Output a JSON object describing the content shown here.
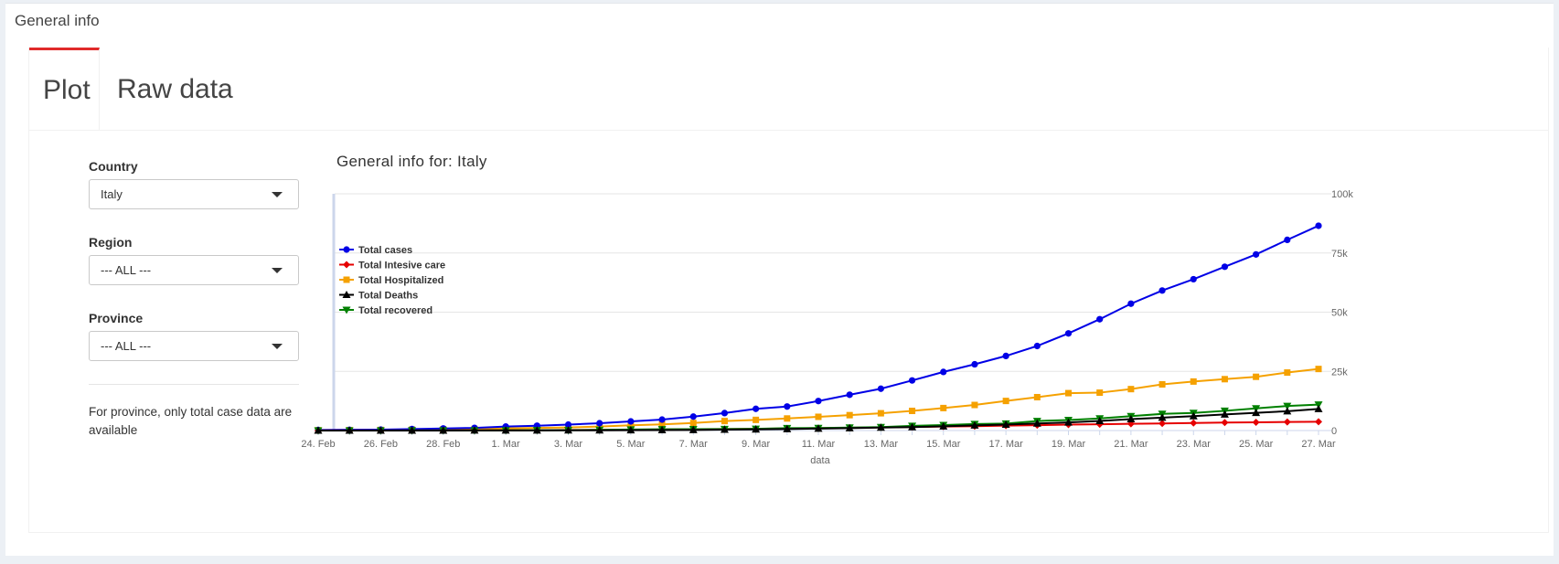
{
  "box": {
    "title": "General info"
  },
  "tabs": [
    {
      "label": "Plot",
      "active": true
    },
    {
      "label": "Raw data",
      "active": false
    }
  ],
  "controls": {
    "country": {
      "label": "Country",
      "value": "Italy"
    },
    "region": {
      "label": "Region",
      "value": "--- ALL ---"
    },
    "province": {
      "label": "Province",
      "value": "--- ALL ---"
    },
    "note": "For province, only total case data are available"
  },
  "chart_data": {
    "type": "line",
    "title": "General info for: Italy",
    "xlabel": "data",
    "ylabel": "",
    "ylim": [
      0,
      100000
    ],
    "yticks": [
      {
        "value": 0,
        "label": "0"
      },
      {
        "value": 25000,
        "label": "25k"
      },
      {
        "value": 50000,
        "label": "50k"
      },
      {
        "value": 75000,
        "label": "75k"
      },
      {
        "value": 100000,
        "label": "100k"
      }
    ],
    "x": [
      "24. Feb",
      "25. Feb",
      "26. Feb",
      "27. Feb",
      "28. Feb",
      "29. Feb",
      "1. Mar",
      "2. Mar",
      "3. Mar",
      "4. Mar",
      "5. Mar",
      "6. Mar",
      "7. Mar",
      "8. Mar",
      "9. Mar",
      "10. Mar",
      "11. Mar",
      "12. Mar",
      "13. Mar",
      "14. Mar",
      "15. Mar",
      "16. Mar",
      "17. Mar",
      "18. Mar",
      "19. Mar",
      "20. Mar",
      "21. Mar",
      "22. Mar",
      "23. Mar",
      "24. Mar",
      "25. Mar",
      "26. Mar",
      "27. Mar"
    ],
    "xtick_labels": [
      "24. Feb",
      "26. Feb",
      "28. Feb",
      "1. Mar",
      "3. Mar",
      "5. Mar",
      "7. Mar",
      "9. Mar",
      "11. Mar",
      "13. Mar",
      "15. Mar",
      "17. Mar",
      "19. Mar",
      "21. Mar",
      "23. Mar",
      "25. Mar",
      "27. Mar"
    ],
    "legend": "left",
    "grid": true,
    "series": [
      {
        "name": "Total cases",
        "color": "#0000e6",
        "marker": "circle",
        "values": [
          229,
          322,
          400,
          650,
          888,
          1128,
          1694,
          2036,
          2502,
          3089,
          3858,
          4636,
          5883,
          7375,
          9172,
          10149,
          12462,
          15113,
          17660,
          21157,
          24747,
          27980,
          31506,
          35713,
          41035,
          47021,
          53578,
          59138,
          63927,
          69176,
          74386,
          80539,
          86498
        ]
      },
      {
        "name": "Total Intesive care",
        "color": "#e60000",
        "marker": "diamond",
        "values": [
          26,
          35,
          36,
          56,
          64,
          105,
          140,
          166,
          229,
          295,
          351,
          462,
          567,
          650,
          733,
          877,
          1028,
          1153,
          1328,
          1518,
          1672,
          1851,
          2060,
          2257,
          2498,
          2655,
          2857,
          3009,
          3204,
          3396,
          3489,
          3612,
          3732
        ]
      },
      {
        "name": "Total Hospitalized",
        "color": "#f5a100",
        "marker": "square",
        "values": [
          150,
          200,
          250,
          380,
          500,
          650,
          900,
          1100,
          1300,
          1700,
          2200,
          2600,
          3200,
          4000,
          4500,
          5100,
          5800,
          6500,
          7300,
          8300,
          9500,
          10800,
          12500,
          14100,
          15800,
          16000,
          17500,
          19500,
          20700,
          21700,
          22700,
          24500,
          26000
        ]
      },
      {
        "name": "Total Deaths",
        "color": "#000000",
        "marker": "triangle-up",
        "values": [
          7,
          10,
          12,
          17,
          21,
          29,
          34,
          52,
          79,
          107,
          148,
          197,
          233,
          366,
          463,
          631,
          827,
          1016,
          1266,
          1441,
          1809,
          2158,
          2503,
          2978,
          3405,
          4032,
          4825,
          5476,
          6077,
          6820,
          7503,
          8165,
          9134
        ]
      },
      {
        "name": "Total recovered",
        "color": "#008000",
        "marker": "triangle-down",
        "values": [
          1,
          1,
          3,
          45,
          46,
          50,
          83,
          149,
          160,
          276,
          414,
          523,
          589,
          622,
          724,
          1004,
          1045,
          1258,
          1439,
          1966,
          2335,
          2749,
          2941,
          4025,
          4440,
          5129,
          6072,
          7024,
          7432,
          8326,
          9362,
          10361,
          10950
        ]
      }
    ]
  }
}
